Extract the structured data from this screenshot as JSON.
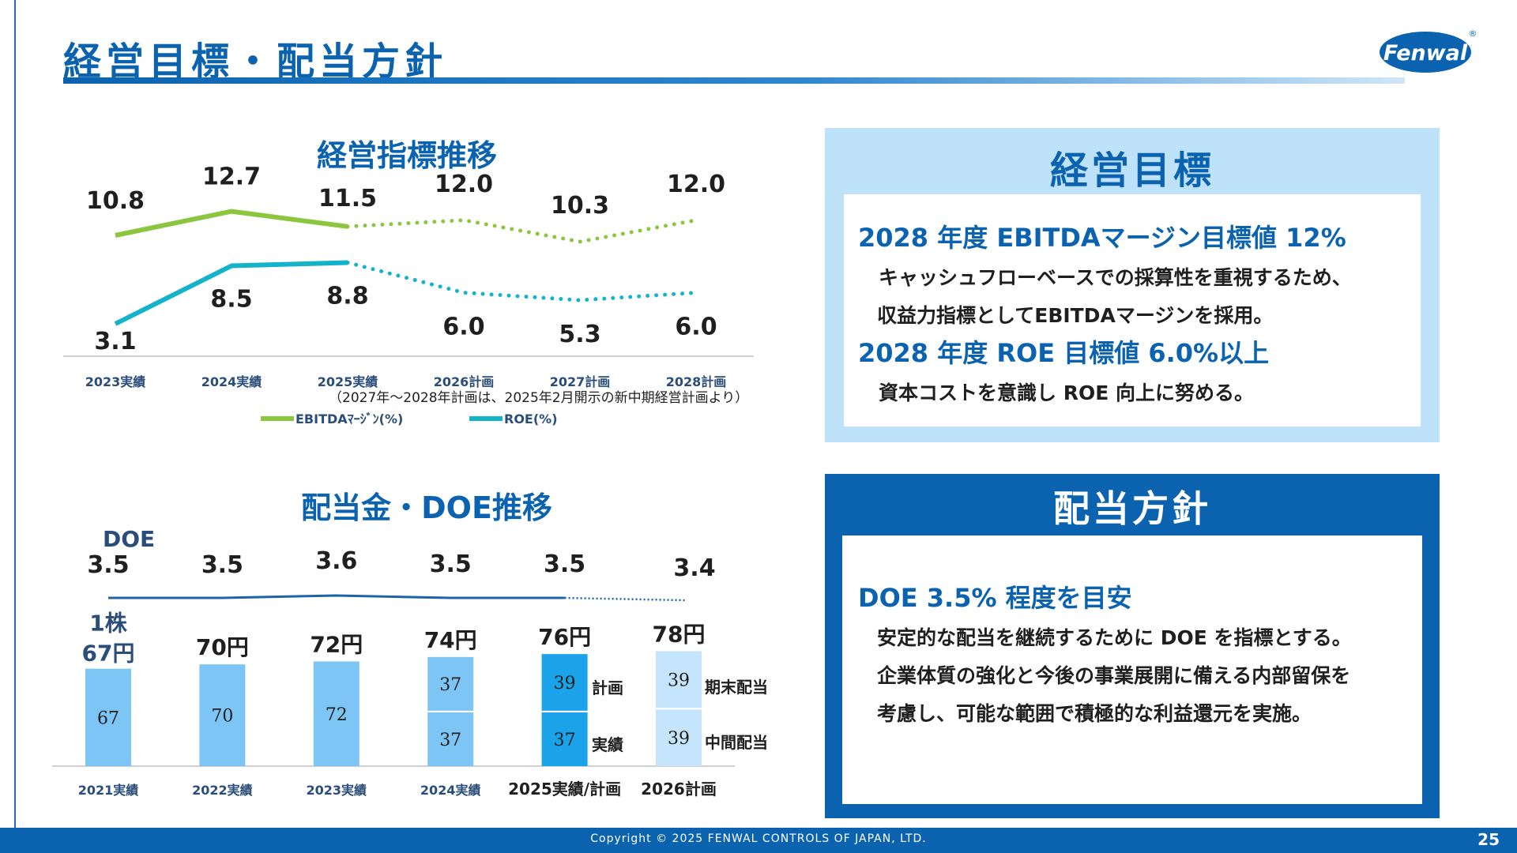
{
  "header": {
    "title": "経営目標・配当方針",
    "logo_text": "Fenwal",
    "logo_mark": "®"
  },
  "chart_titles": {
    "indicators": "経営指標推移",
    "dividend": "配当金・DOE推移"
  },
  "colors": {
    "primary": "#0b63b0",
    "ebitda": "#8cc63f",
    "roe": "#14b3c9",
    "bar_light": "#7cc5f5",
    "bar_mid": "#1aa3e8",
    "bar_pale": "#c4e5fb",
    "panel_light": "#bfe2fb"
  },
  "chart_data": [
    {
      "type": "line",
      "categories": [
        "2023実績",
        "2024実績",
        "2025実績",
        "2026計画",
        "2027計画",
        "2028計画"
      ],
      "series": [
        {
          "name": "EBITDAﾏｰｼﾞﾝ(%)",
          "values": [
            10.8,
            12.7,
            11.5,
            12.0,
            10.3,
            12.0
          ],
          "labels": [
            "10.8",
            "12.7",
            "11.5",
            "12.0",
            "10.3",
            "12.0"
          ]
        },
        {
          "name": "ROE(%)",
          "values": [
            3.1,
            8.5,
            8.8,
            6.0,
            5.3,
            6.0
          ],
          "labels": [
            "3.1",
            "8.5",
            "8.8",
            "6.0",
            "5.3",
            "6.0"
          ]
        }
      ],
      "actual_count": 3,
      "note": "（2027年～2028年計画は、2025年2月開示の新中期経営計画より）",
      "legend_position": "bottom"
    },
    {
      "type": "bar",
      "categories": [
        "2021実績",
        "2022実績",
        "2023実績",
        "2024実績",
        "2025実績/計画",
        "2026計画"
      ],
      "doe_label": "DOE",
      "doe": [
        3.5,
        3.5,
        3.6,
        3.5,
        3.5,
        3.4
      ],
      "doe_labels": [
        "3.5",
        "3.5",
        "3.6",
        "3.5",
        "3.5",
        "3.4"
      ],
      "doe_actual_count": 5,
      "totals": [
        67,
        70,
        72,
        74,
        76,
        78
      ],
      "total_labels": [
        "67円",
        "70円",
        "72円",
        "74円",
        "76円",
        "78円"
      ],
      "first_prefix": "1株",
      "stacked": [
        {
          "interim": 67,
          "final": null
        },
        {
          "interim": 70,
          "final": null
        },
        {
          "interim": 72,
          "final": null
        },
        {
          "interim": 37,
          "final": 37
        },
        {
          "interim": 37,
          "final": 39
        },
        {
          "interim": 39,
          "final": 39
        }
      ],
      "side_labels": {
        "plan": "計画",
        "actual": "実績",
        "final": "期末配当",
        "interim": "中間配当"
      }
    }
  ],
  "goal_panel": {
    "title": "経営目標",
    "h1": "2028 年度 EBITDAマージン目標値 12%",
    "p1a": "キャッシュフローベースでの採算性を重視するため、",
    "p1b": "収益力指標としてEBITDAマージンを採用。",
    "h2": "2028 年度 ROE 目標値 6.0%以上",
    "p2": "資本コストを意識し ROE 向上に努める。"
  },
  "policy_panel": {
    "title": "配当方針",
    "h1": "DOE 3.5% 程度を目安",
    "p1": "安定的な配当を継続するために DOE を指標とする。",
    "p2": "企業体質の強化と今後の事業展開に備える内部留保を",
    "p3": "考慮し、可能な範囲で積極的な利益還元を実施。"
  },
  "footer": {
    "copyright": "Copyright © 2025 FENWAL CONTROLS OF JAPAN, LTD.",
    "page": "25"
  }
}
